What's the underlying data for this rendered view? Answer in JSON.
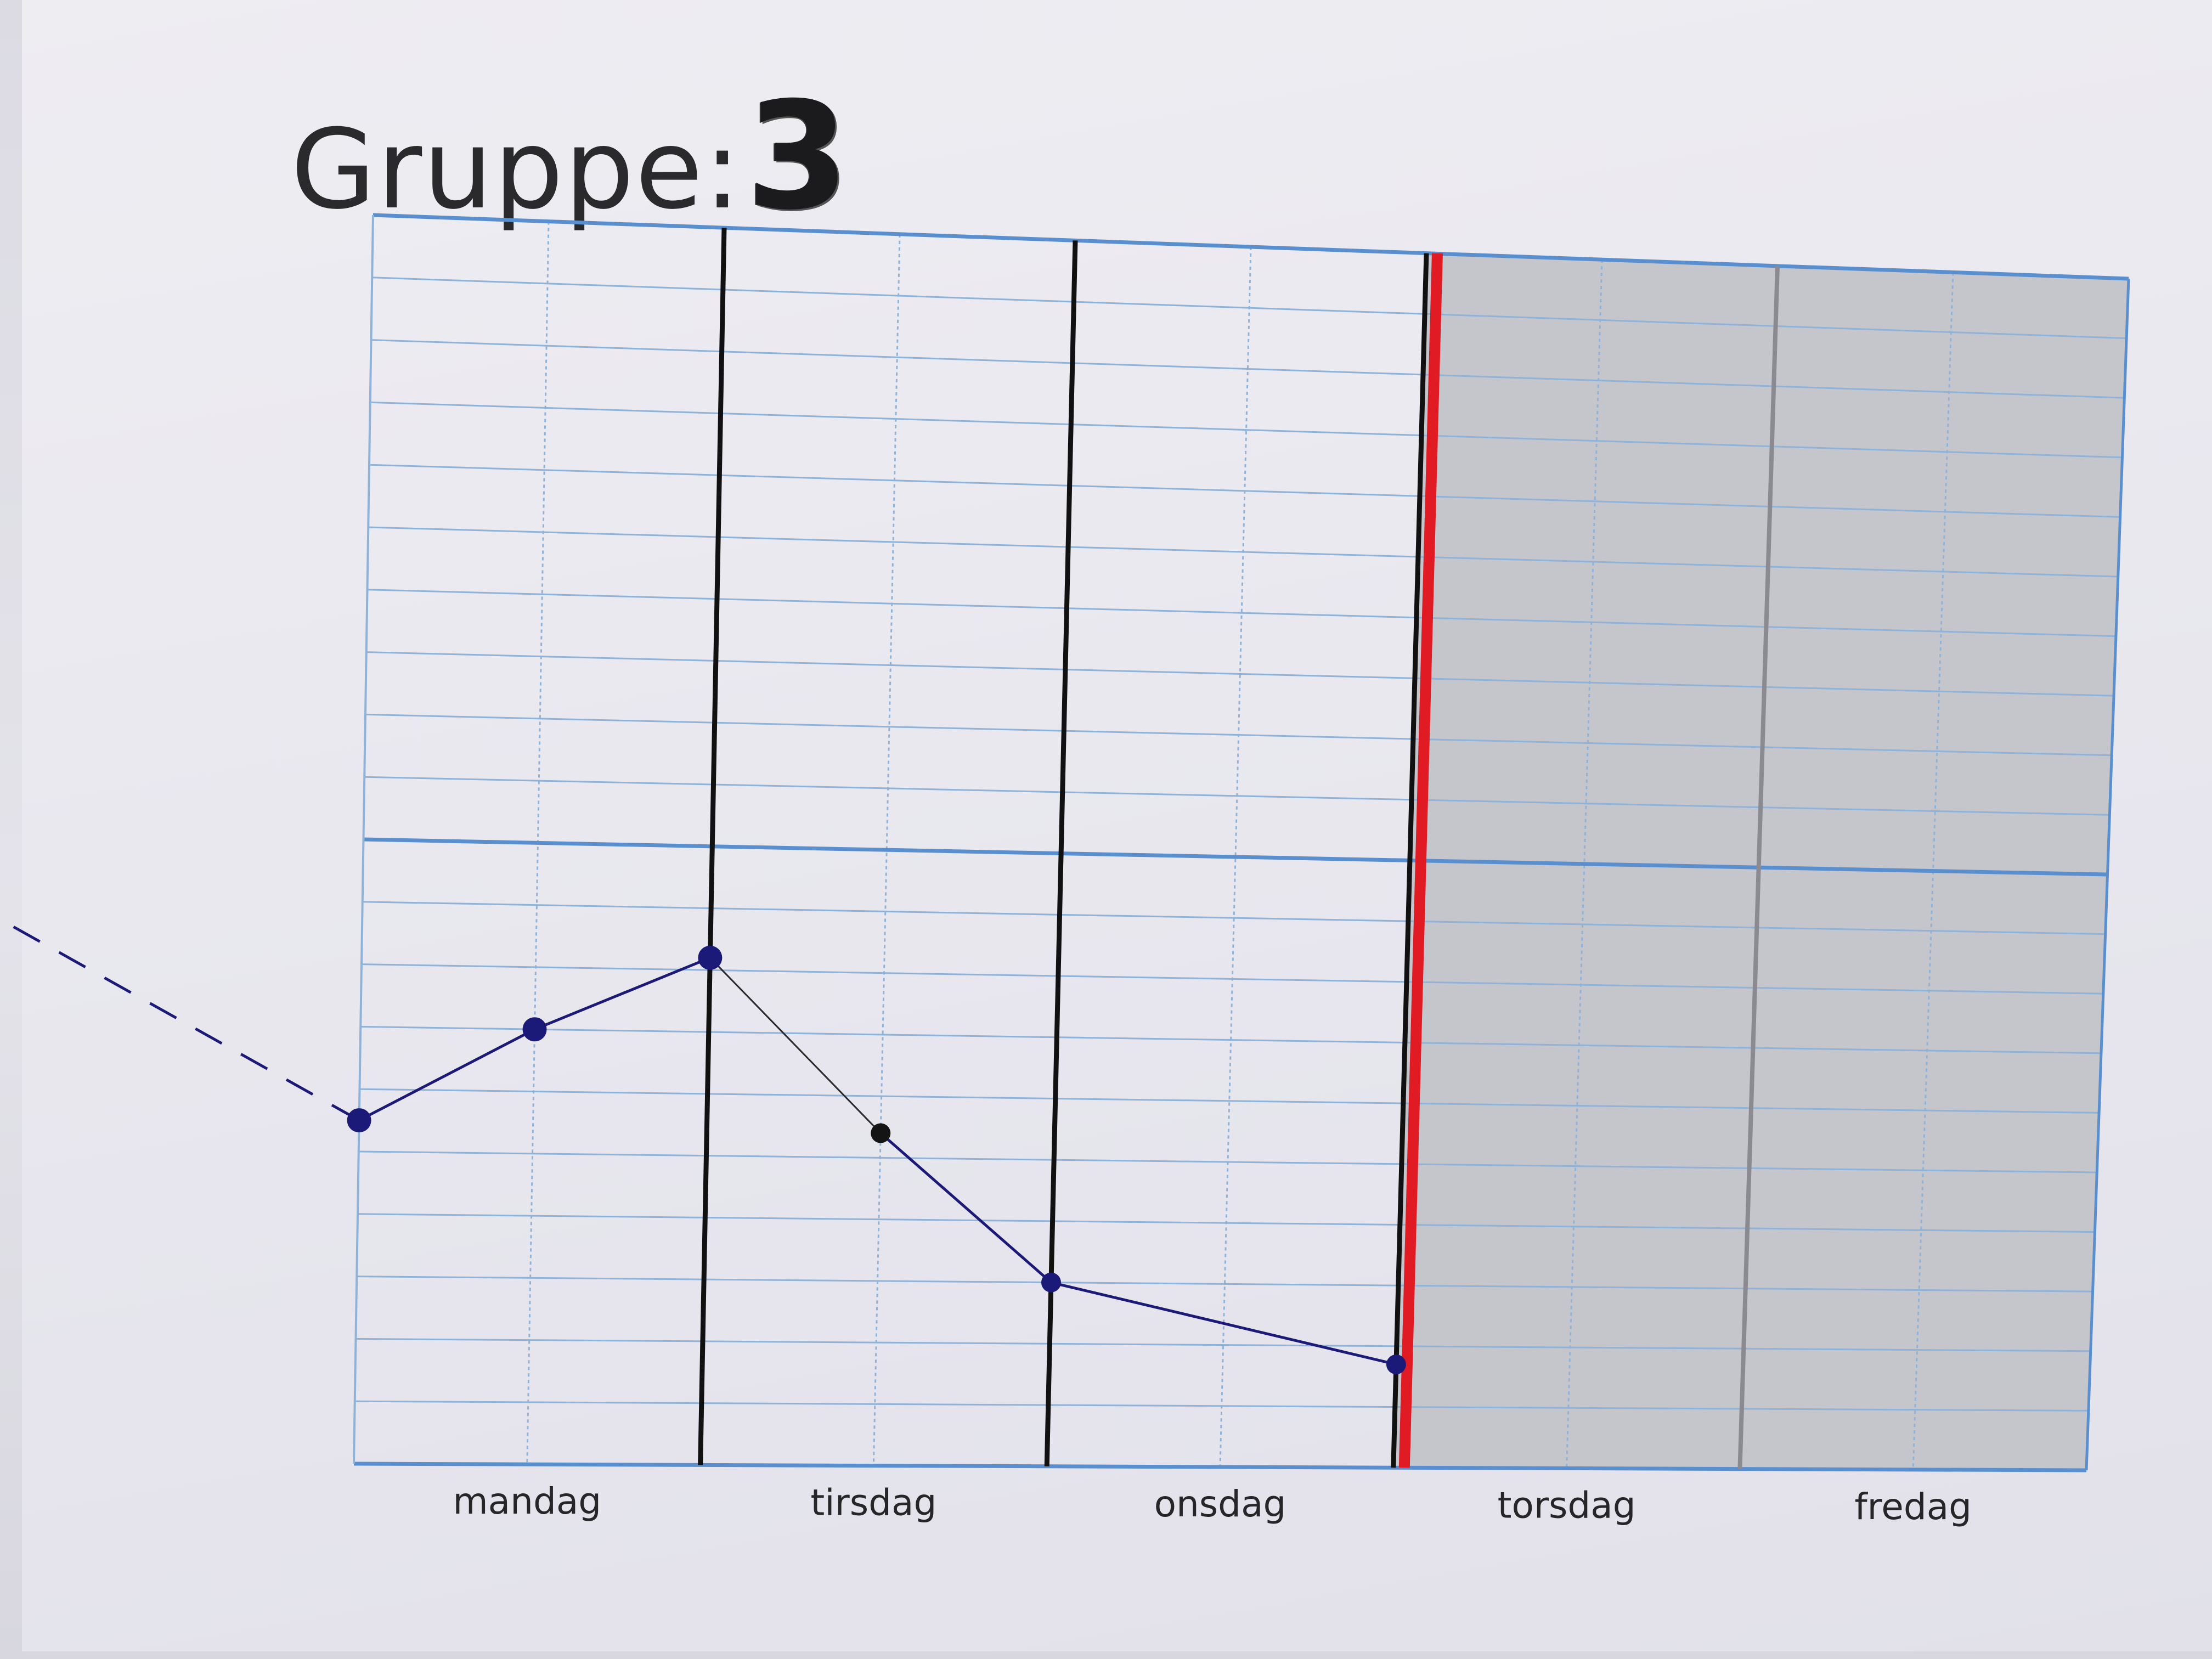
{
  "header": {
    "title_label": "Gruppe:",
    "group_number": "3"
  },
  "chart_data": {
    "type": "line",
    "title": "Gruppe: 3",
    "categories": [
      "mandag",
      "tirsdag",
      "onsdag",
      "torsdag",
      "fredag"
    ],
    "x_subdivisions_per_category": 2,
    "y_grid_lines": 20,
    "y_tick_labels": false,
    "ylim": [
      0,
      20
    ],
    "x": [
      0,
      0.5,
      1,
      1.5,
      2,
      3
    ],
    "series": [
      {
        "values": [
          5.5,
          7.0,
          8.2,
          5.4,
          3.0,
          1.7
        ]
      }
    ],
    "previous_trend": {
      "style": "dashed",
      "from_x": -1.0,
      "from_y": 8.5,
      "to_x": 0,
      "to_y": 5.5
    },
    "current_time_x": 3,
    "future_region": {
      "from_x": 3,
      "to_x": 5,
      "fill": "#c5c5cc"
    },
    "grid": true,
    "colors": {
      "series_line": "#1c1a78",
      "segment_1": "#2a2a2a",
      "grid_major": "#5a8fcf",
      "grid_minor": "#8fb3d8",
      "day_divider": "#111111",
      "current_time": "#e01b23",
      "future_divider": "#8a8a90"
    }
  }
}
